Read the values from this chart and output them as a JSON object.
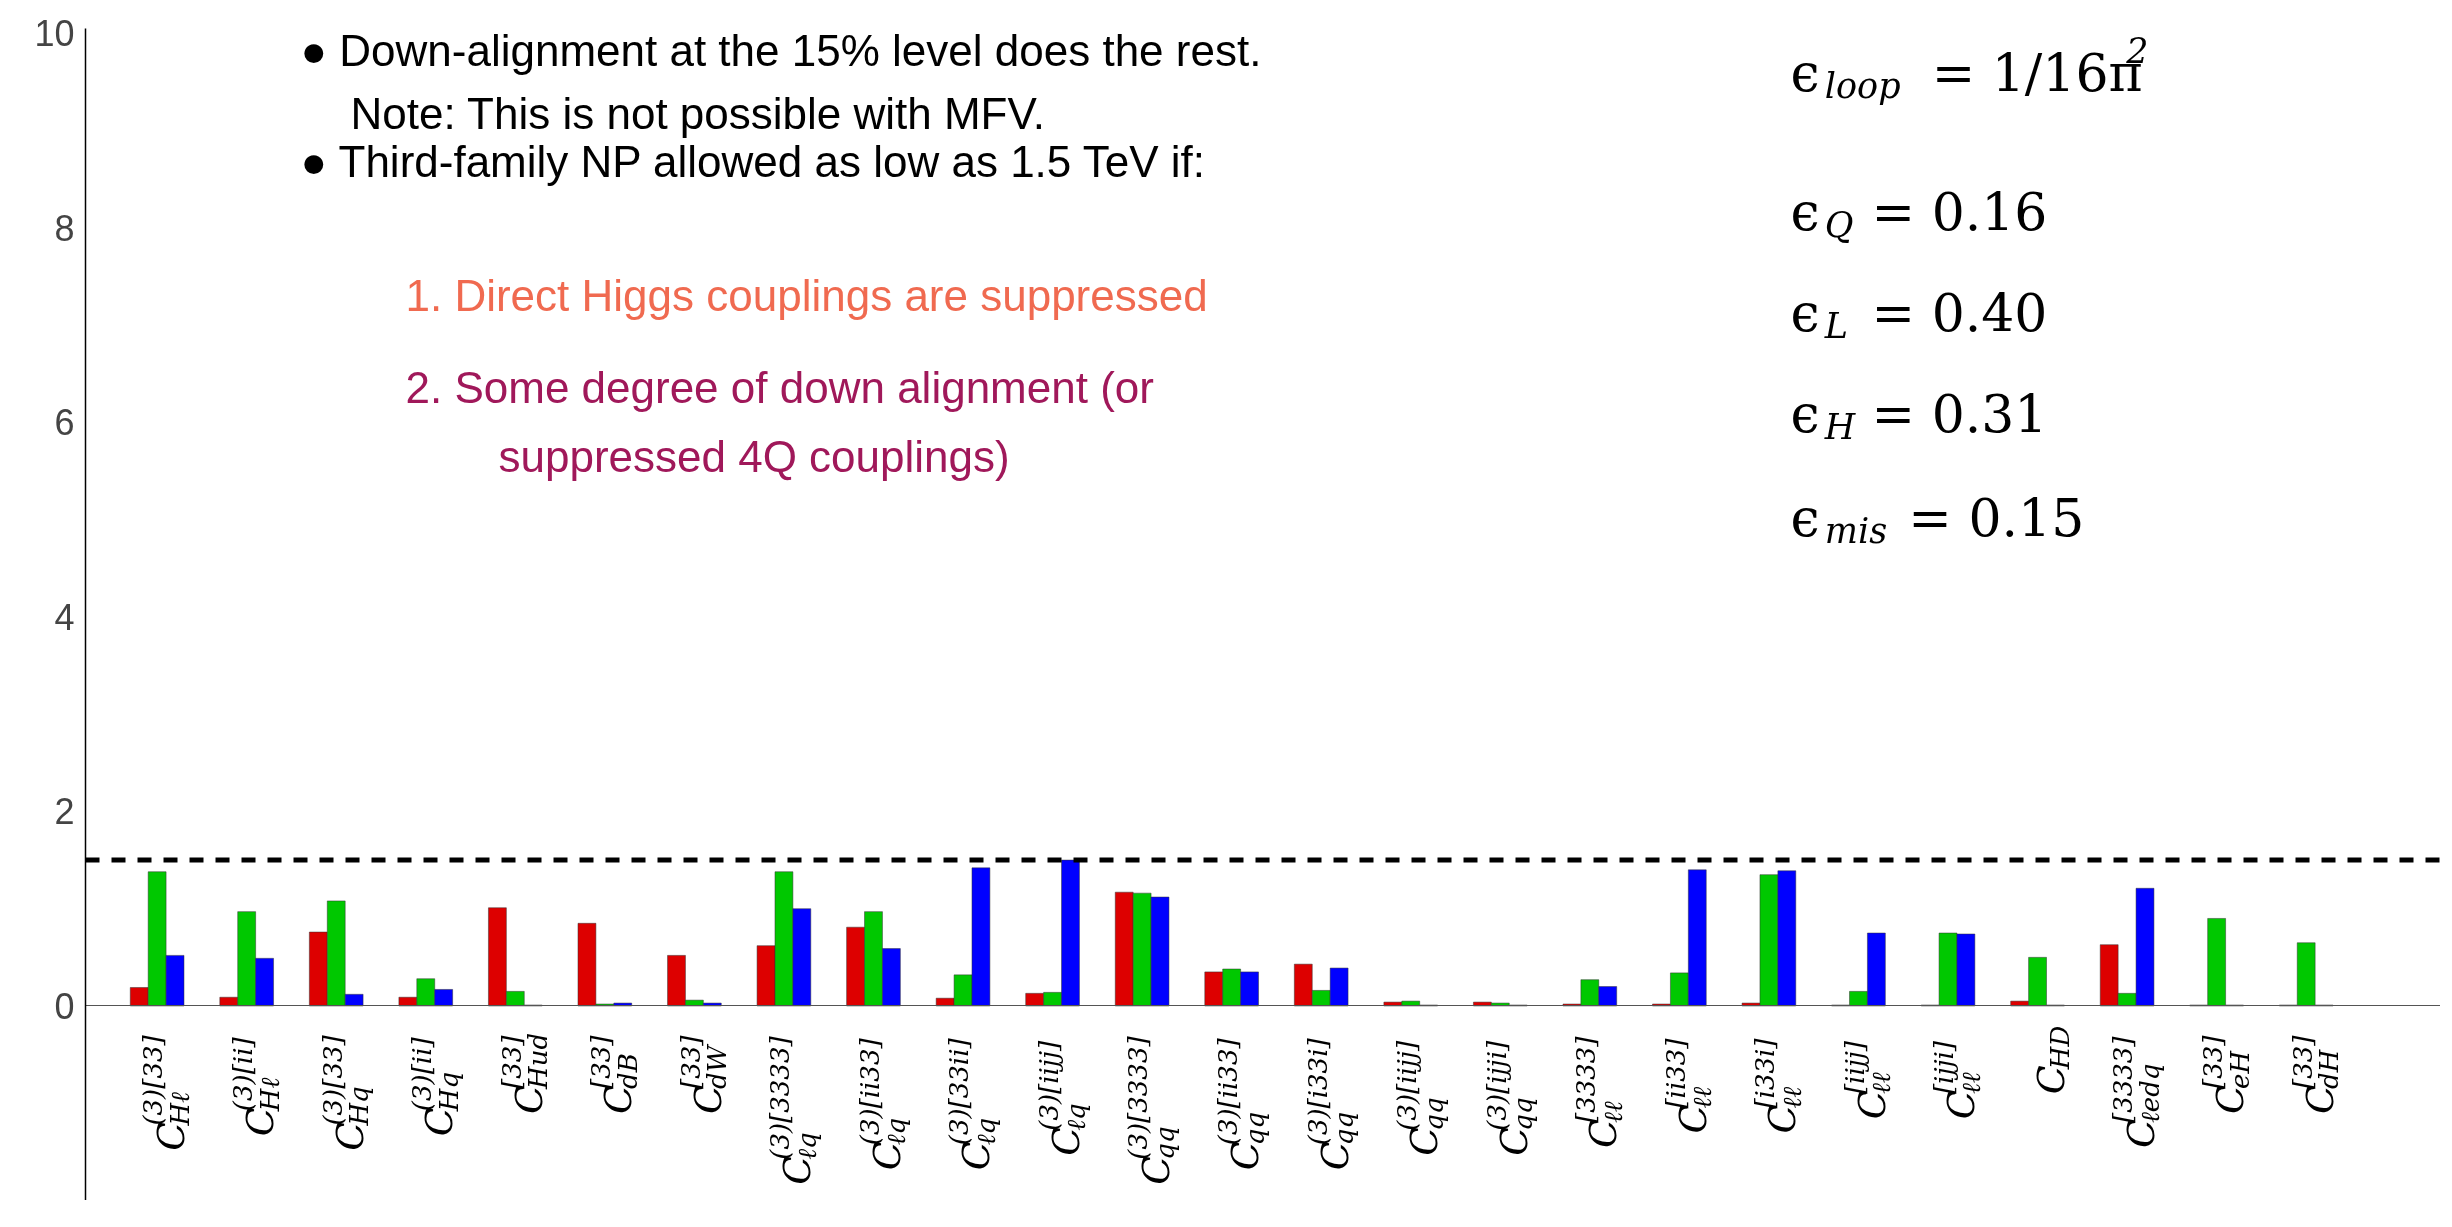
{
  "chart_data": {
    "type": "bar",
    "categories": [
      "C$^{(3)[33]}$$_{Hℓ}$",
      "C$^{(3)[ii]}$$_{Hℓ}$",
      "C$^{(3)[33]}$$_{Hq}$",
      "C$^{(3)[ii]}$$_{Hq}$",
      "C$^{[33]}$$_{Hud}$",
      "C$^{[33]}$$_{dB}$",
      "C$^{[33]}$$_{dW}$",
      "C$^{(3)[3333]}$$_{ℓq}$",
      "C$^{(3)[ii33]}$$_{ℓq}$",
      "C$^{(3)[33ii]}$$_{ℓq}$",
      "C$^{(3)[iijj]}$$_{ℓq}$",
      "C$^{(3)[3333]}$$_{qq}$",
      "C$^{(3)[ii33]}$$_{qq}$",
      "C$^{(3)[i33i]}$$_{qq}$",
      "C$^{(3)[iijj]}$$_{qq}$",
      "C$^{(3)[ijji]}$$_{qq}$",
      "C$^{[3333]}$$_{ℓℓ}$",
      "C$^{[ii33]}$$_{ℓℓ}$",
      "C$^{[i33i]}$$_{ℓℓ}$",
      "C$^{[iijj]}$$_{ℓℓ}$",
      "C$^{[ijji]}$$_{ℓℓ}$",
      "C$_{HD}$",
      "C$^{[3333]}$$_{ℓedq}$",
      "C$^{[33]}$$_{eH}$",
      "C$^{[33]}$$_{dH}$"
    ],
    "series": [
      {
        "color": "#dd0000",
        "values": [
          0.19,
          0.09,
          0.76,
          0.09,
          1.01,
          0.85,
          0.52,
          0.62,
          0.81,
          0.08,
          0.13,
          1.17,
          0.35,
          0.43,
          0.04,
          0.04,
          0.02,
          0.02,
          0.03,
          0.01,
          0.01,
          0.05,
          0.63,
          0.01,
          0.01
        ]
      },
      {
        "color": "#00c800",
        "values": [
          1.38,
          0.97,
          1.08,
          0.28,
          0.15,
          0.02,
          0.06,
          1.38,
          0.97,
          0.32,
          0.14,
          1.16,
          0.38,
          0.16,
          0.05,
          0.03,
          0.27,
          0.34,
          1.35,
          0.15,
          0.75,
          0.5,
          0.13,
          0.9,
          0.65
        ]
      },
      {
        "color": "#0000ff",
        "values": [
          0.52,
          0.49,
          0.12,
          0.17,
          0.01,
          0.03,
          0.03,
          1.0,
          0.59,
          1.42,
          1.5,
          1.12,
          0.35,
          0.39,
          0.01,
          0.01,
          0.2,
          1.4,
          1.39,
          0.75,
          0.74,
          0.01,
          1.21,
          0.01,
          0.01
        ]
      }
    ],
    "ylim": [
      -2,
      10.05
    ],
    "yticks": [
      0,
      2,
      4,
      6,
      8,
      10
    ],
    "grid": false,
    "ref_lines": [
      {
        "axis": "y",
        "value": 1.5,
        "color": "#000000",
        "line_style": "dashed"
      }
    ],
    "annotations": [
      "● Down-alignment at the 15% level does the rest.",
      "Note: This is not possible with MFV.",
      "● Third-family NP allowed as low as 1.5 TeV if:",
      "1. Direct Higgs couplings are suppressed",
      "2. Some degree of down alignment (or",
      "suppressed 4Q couplings)",
      "ϵ$_{loop}$ = 1/16π$^{2}$",
      "ϵ$_{Q}$ = 0.16",
      "ϵ$_{L}$ = 0.40",
      "ϵ$_{H}$ = 0.31",
      "ϵ$_{mis}$ = 0.15"
    ]
  }
}
